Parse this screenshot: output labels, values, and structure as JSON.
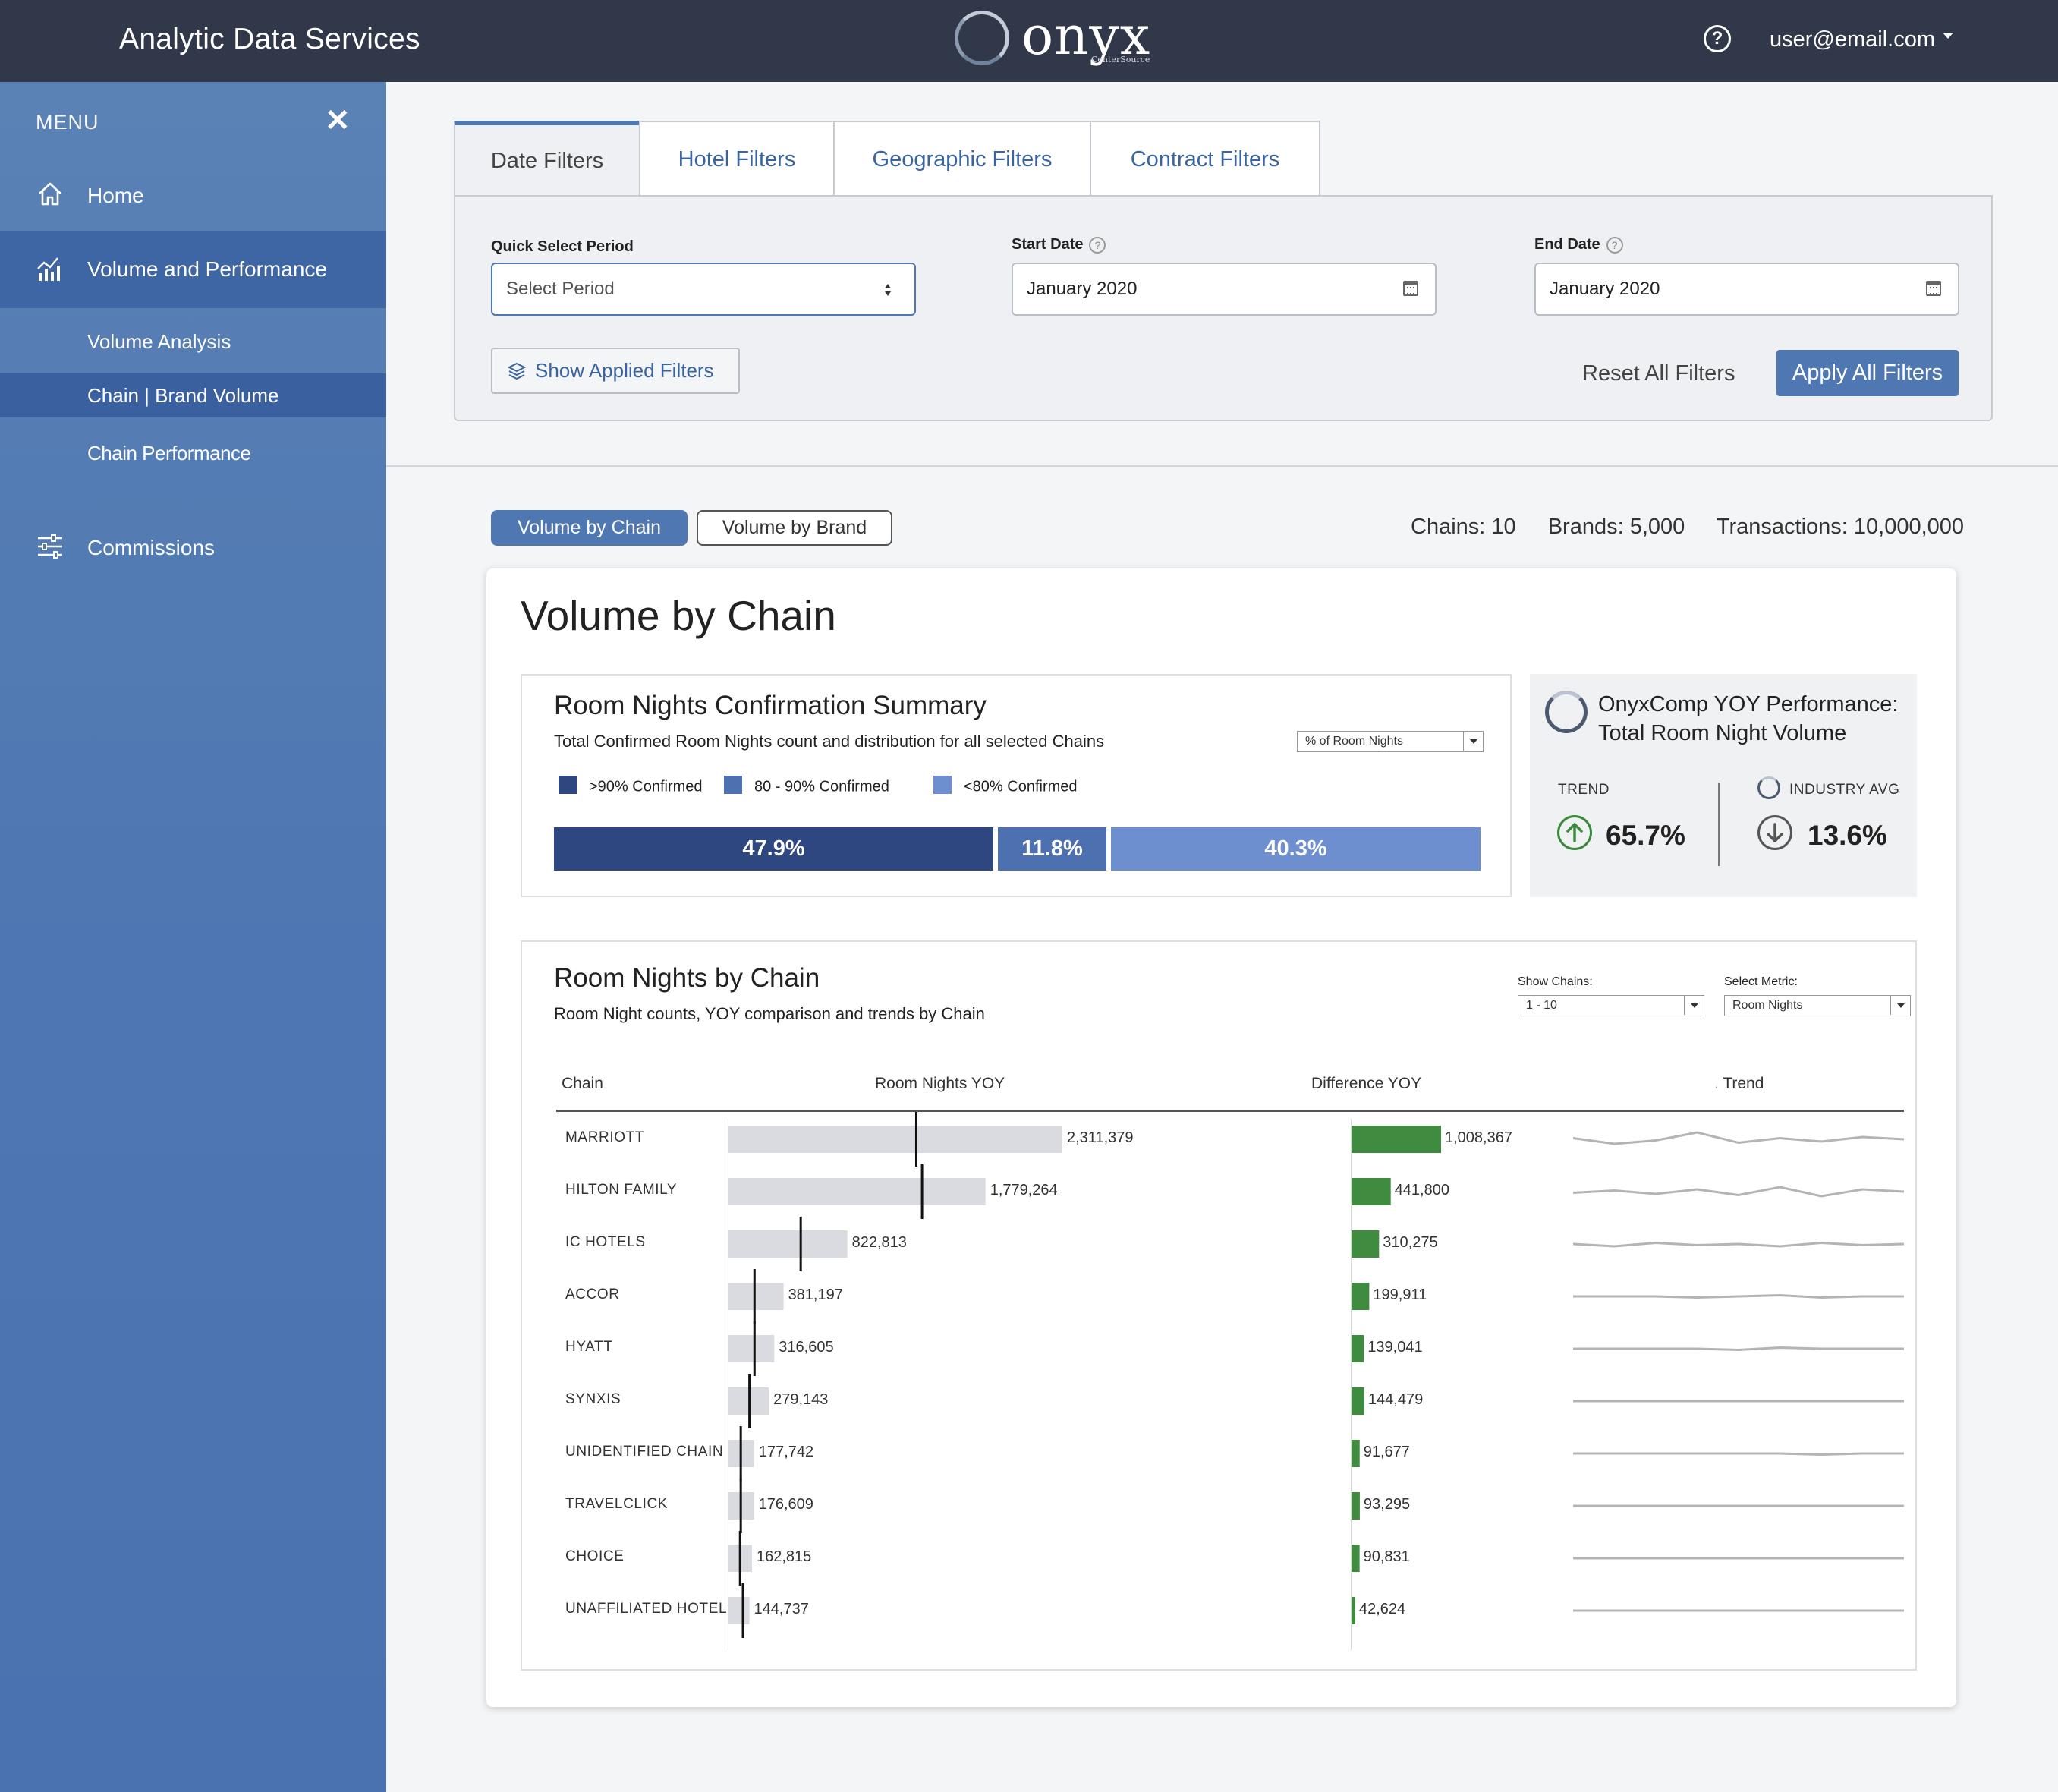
{
  "header": {
    "app_title": "Analytic Data Services",
    "logo_word": "onyx",
    "logo_sub": "CenterSource",
    "user": "user@email.com",
    "help_icon": "help-circle-icon"
  },
  "sidebar": {
    "menu_label": "MENU",
    "close_icon": "close-icon",
    "items": [
      {
        "label": "Home",
        "icon": "home-icon"
      },
      {
        "label": "Volume and Performance",
        "icon": "bar-chart-icon"
      },
      {
        "label": "Volume Analysis"
      },
      {
        "label": "Chain | Brand Volume"
      },
      {
        "label": "Chain Performance"
      },
      {
        "label": "Commissions",
        "icon": "sliders-icon"
      }
    ]
  },
  "filters": {
    "tabs": [
      "Date Filters",
      "Hotel Filters",
      "Geographic Filters",
      "Contract Filters"
    ],
    "quick_select_label": "Quick Select Period",
    "quick_select_value": "Select Period",
    "start_label": "Start Date",
    "start_value": "January 2020",
    "end_label": "End Date",
    "end_value": "January 2020",
    "show_applied": "Show Applied Filters",
    "reset": "Reset All Filters",
    "apply": "Apply All Filters"
  },
  "view_toggle": {
    "active": "Volume by Chain",
    "inactive": "Volume by Brand"
  },
  "stats": {
    "chains": "Chains: 10",
    "brands": "Brands: 5,000",
    "transactions": "Transactions: 10,000,000"
  },
  "card": {
    "title": "Volume by Chain",
    "confirmation": {
      "title": "Room Nights Confirmation Summary",
      "desc": "Total Confirmed Room Nights count and distribution for all selected Chains",
      "metric_select": "% of Room Nights",
      "legend": [
        {
          "label": ">90% Confirmed",
          "color": "#2e4780"
        },
        {
          "label": "80 - 90% Confirmed",
          "color": "#4c70b0"
        },
        {
          "label": "<80% Confirmed",
          "color": "#6d8fcf"
        }
      ],
      "segments": [
        {
          "label": "47.9%",
          "value": 47.9,
          "color": "#2e4780"
        },
        {
          "label": "11.8%",
          "value": 11.8,
          "color": "#4c70b0"
        },
        {
          "label": "40.3%",
          "value": 40.3,
          "color": "#6d8fcf"
        }
      ]
    },
    "kpi": {
      "title_line1": "OnyxComp YOY Performance:",
      "title_line2": "Total Room Night Volume",
      "trend_label": "TREND",
      "trend_value": "65.7%",
      "trend_direction": "up",
      "trend_color": "#3a8a3c",
      "industry_label": "INDUSTRY AVG",
      "industry_value": "13.6%",
      "industry_direction": "down",
      "industry_color": "#555555"
    },
    "room_nights": {
      "title": "Room Nights by Chain",
      "desc": "Room Night counts, YOY comparison and trends by Chain",
      "show_chains_label": "Show Chains:",
      "show_chains_value": "1 - 10",
      "metric_label": "Select Metric:",
      "metric_value": "Room Nights",
      "col_chain": "Chain",
      "col_rn": "Room Nights YOY",
      "col_diff": "Difference YOY",
      "col_trend": "Trend",
      "trend_prefix": ".",
      "bar_color": "#d9dbe0",
      "diff_color": "#3f8b3f",
      "marker_color": "#111111",
      "sparkline_color": "#b4b4b4"
    }
  },
  "chart_data": {
    "type": "bar",
    "categories": [
      "MARRIOTT",
      "HILTON FAMILY",
      "IC HOTELS",
      "ACCOR",
      "HYATT",
      "SYNXIS",
      "UNIDENTIFIED CHAIN",
      "TRAVELCLICK",
      "CHOICE",
      "UNAFFILIATED HOTELS"
    ],
    "series": [
      {
        "name": "Room Nights YOY",
        "values": [
          2311379,
          1779264,
          822813,
          381197,
          316605,
          279143,
          177742,
          176609,
          162815,
          144737
        ],
        "labels": [
          "2,311,379",
          "1,779,264",
          "822,813",
          "381,197",
          "316,605",
          "279,143",
          "177,742",
          "176,609",
          "162,815",
          "144,737"
        ]
      },
      {
        "name": "Difference YOY",
        "values": [
          1008367,
          441800,
          310275,
          199911,
          139041,
          144479,
          91677,
          93295,
          90831,
          42624
        ],
        "labels": [
          "1,008,367",
          "441,800",
          "310,275",
          "199,911",
          "139,041",
          "144,479",
          "91,677",
          "93,295",
          "90,831",
          "42,624"
        ]
      }
    ],
    "prior_year_markers": [
      1300000,
      1340000,
      500000,
      180000,
      180000,
      145000,
      85000,
      85000,
      80000,
      100000
    ],
    "trend": [
      [
        0.55,
        0.3,
        0.45,
        0.8,
        0.35,
        0.55,
        0.4,
        0.6,
        0.5
      ],
      [
        0.45,
        0.55,
        0.4,
        0.6,
        0.35,
        0.7,
        0.3,
        0.6,
        0.5
      ],
      [
        0.5,
        0.4,
        0.55,
        0.45,
        0.5,
        0.4,
        0.55,
        0.45,
        0.5
      ],
      [
        0.5,
        0.5,
        0.5,
        0.45,
        0.5,
        0.55,
        0.45,
        0.5,
        0.5
      ],
      [
        0.5,
        0.5,
        0.5,
        0.5,
        0.45,
        0.55,
        0.5,
        0.5,
        0.5
      ],
      [
        0.5,
        0.5,
        0.5,
        0.5,
        0.5,
        0.5,
        0.5,
        0.5,
        0.5
      ],
      [
        0.5,
        0.5,
        0.5,
        0.5,
        0.5,
        0.5,
        0.45,
        0.5,
        0.5
      ],
      [
        0.5,
        0.5,
        0.5,
        0.5,
        0.5,
        0.5,
        0.5,
        0.5,
        0.5
      ],
      [
        0.5,
        0.5,
        0.5,
        0.5,
        0.5,
        0.5,
        0.5,
        0.5,
        0.5
      ],
      [
        0.5,
        0.5,
        0.5,
        0.5,
        0.5,
        0.5,
        0.5,
        0.5,
        0.5
      ]
    ],
    "xlim": [
      0,
      2400000
    ]
  }
}
